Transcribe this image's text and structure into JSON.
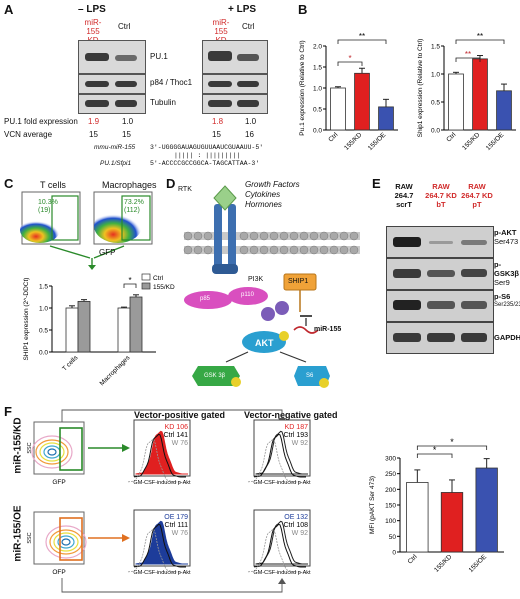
{
  "panelA": {
    "letter": "A",
    "minus_lps": "– LPS",
    "plus_lps": "+ LPS",
    "col_kd": "miR-155 KD",
    "col_ctrl": "Ctrl",
    "row_pu1": "PU.1",
    "row_p84": "p84 / Thoc1",
    "row_tubulin": "Tubulin",
    "fold_label": "PU.1 fold expression",
    "fold_minus_kd": "1.9",
    "fold_minus_ctrl": "1.0",
    "fold_plus_kd": "1.8",
    "fold_plus_ctrl": "1.0",
    "vcn_label": "VCN average",
    "vcn_minus_kd": "15",
    "vcn_minus_ctrl": "15",
    "vcn_plus_kd": "15",
    "vcn_plus_ctrl": "16",
    "seq1_name": "mmu-miR-155",
    "seq1": "3'-UGGGGAUAGUGUUAAUCGUAAUU-5'",
    "seq_match": "|||||   : |||||||||",
    "seq2_name": "PU.1/Sfpi1",
    "seq2": "5'-ACCCCGCCGGCA-TAGCATTAA-3'"
  },
  "panelB": {
    "letter": "B",
    "chart_data": [
      {
        "type": "bar",
        "ylabel": "Pu.1 expression (Relative to Ctrl)",
        "categories": [
          "Ctrl",
          "155/KD",
          "155/OE"
        ],
        "values": [
          1.0,
          1.35,
          0.55
        ],
        "errors": [
          0.03,
          0.12,
          0.18
        ],
        "ylim": [
          0,
          2.0
        ],
        "yticks": [
          "0.0",
          "0.5",
          "1.0",
          "1.5",
          "2.0"
        ],
        "colors": [
          "#ffffff",
          "#e02020",
          "#3a52b0"
        ],
        "significance": [
          "*",
          "**"
        ]
      },
      {
        "type": "bar",
        "ylabel": "Ship1 expression (Relative to Ctrl)",
        "categories": [
          "Ctrl",
          "155/KD",
          "155/OE"
        ],
        "values": [
          1.0,
          1.27,
          0.7
        ],
        "errors": [
          0.03,
          0.06,
          0.12
        ],
        "ylim": [
          0,
          1.5
        ],
        "yticks": [
          "0.0",
          "0.5",
          "1.0",
          "1.5"
        ],
        "colors": [
          "#ffffff",
          "#e02020",
          "#3a52b0"
        ],
        "significance": [
          "**",
          "**"
        ]
      }
    ]
  },
  "panelC": {
    "letter": "C",
    "tcells_title": "T cells",
    "macro_title": "Macrophages",
    "gate_t": "10.3% (19)",
    "gate_m": "73.2% (112)",
    "gfp": "GFP",
    "fsc": "FSC-H",
    "chart_data": {
      "type": "bar",
      "ylabel": "SHIP1 expression (2^-DDCt)",
      "categories": [
        "T cells",
        "Macrophages"
      ],
      "series": [
        {
          "name": "Ctrl",
          "values": [
            1.0,
            1.0
          ],
          "errors": [
            0.05,
            0.02
          ],
          "color": "#ffffff"
        },
        {
          "name": "155/KD",
          "values": [
            1.15,
            1.25
          ],
          "errors": [
            0.04,
            0.05
          ],
          "color": "#9a9a9a"
        }
      ],
      "ylim": [
        0,
        1.5
      ],
      "yticks": [
        "0.0",
        "0.5",
        "1.0",
        "1.5"
      ],
      "significance": "*"
    }
  },
  "panelD": {
    "letter": "D",
    "rtk": "RTK",
    "gf1": "Growth Factors",
    "gf2": "Cytokines",
    "gf3": "Hormones",
    "pi3k": "PI3K",
    "p85": "p85",
    "p110": "p110",
    "ship1": "SHIP1",
    "mir155": "miR-155",
    "akt": "AKT",
    "gsk": "GSK 3β",
    "s6": "S6",
    "p": "P"
  },
  "panelE": {
    "letter": "E",
    "col1": "RAW 264.7 scrT",
    "col2": "RAW 264.7 KD bT",
    "col3": "RAW 264.7 KD pT",
    "row1a": "p-AKT",
    "row1b": "Ser473",
    "row2a": "p-GSK3β",
    "row2b": "Ser9",
    "row3a": "p-S6",
    "row3b": "Ser235/236",
    "row4": "GAPDH"
  },
  "panelF": {
    "letter": "F",
    "kd_label": "miR-155/KD",
    "oe_label": "miR-155/OE",
    "ssc": "SSC",
    "gfp": "GFP",
    "ofp": "OFP",
    "pos_title": "Vector-positive gated",
    "neg_title": "Vector-negative gated",
    "xaxis": "GM-CSF-induced p-Akt",
    "kd_pos": [
      "KD 106",
      "Ctrl 141",
      "W 76"
    ],
    "kd_neg": [
      "KD 187",
      "Ctrl 193",
      "W 92"
    ],
    "oe_pos": [
      "OE 179",
      "Ctrl 111",
      "W 76"
    ],
    "oe_neg": [
      "OE 132",
      "Ctrl 108",
      "W 92"
    ],
    "chart_data": {
      "type": "bar",
      "ylabel": "MFI (pAKT Ser 473)",
      "categories": [
        "Ctrl",
        "155/KD",
        "155/OE"
      ],
      "values": [
        222,
        190,
        268
      ],
      "errors": [
        40,
        40,
        30
      ],
      "ylim": [
        0,
        300
      ],
      "yticks": [
        "0",
        "50",
        "100",
        "150",
        "200",
        "250",
        "300"
      ],
      "colors": [
        "#ffffff",
        "#e02020",
        "#3a52b0"
      ],
      "significance": [
        "*",
        "*"
      ]
    }
  }
}
